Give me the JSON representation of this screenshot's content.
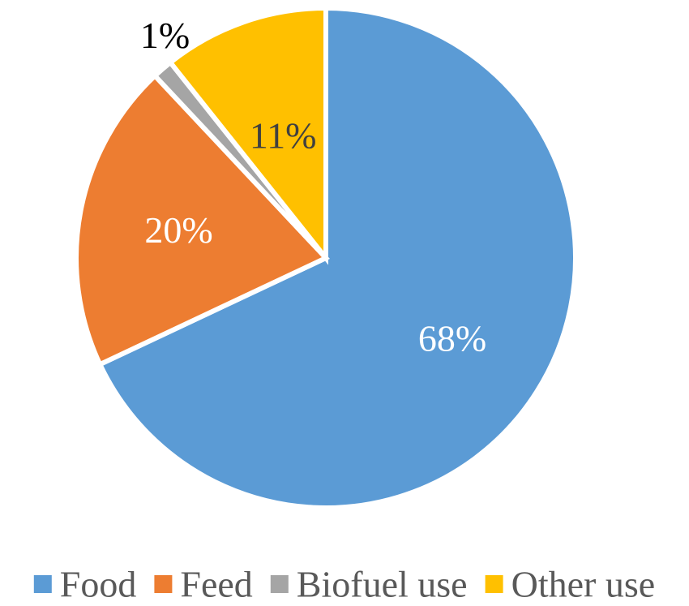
{
  "chart_data": {
    "type": "pie",
    "categories": [
      "Food",
      "Feed",
      "Biofuel use",
      "Other use"
    ],
    "values": [
      68,
      20,
      1.3,
      10.7
    ],
    "data_labels": [
      "68%",
      "20%",
      "1%",
      "11%"
    ],
    "colors": [
      "#5B9BD5",
      "#ED7D31",
      "#A5A5A5",
      "#FFC000"
    ],
    "label_colors": [
      "#ffffff",
      "#ffffff",
      "#000000",
      "#404040"
    ],
    "start_angle_deg": 0,
    "direction": "clockwise",
    "legend_position": "bottom",
    "title": ""
  }
}
